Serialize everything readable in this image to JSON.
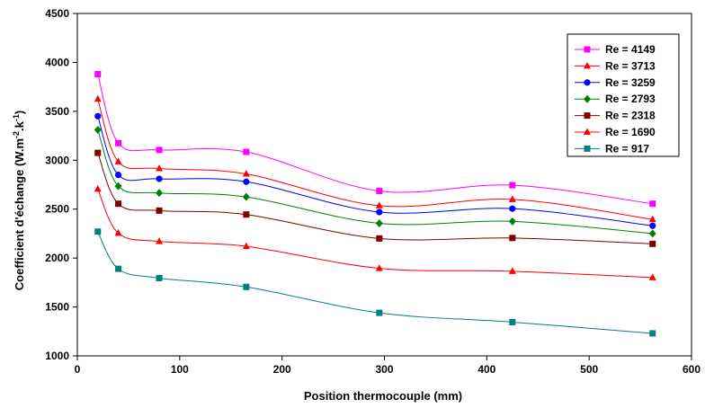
{
  "chart_data": {
    "type": "line",
    "xlabel": "Position thermocouple (mm)",
    "ylabel_main": "Coefficient d'échange (W.m",
    "ylabel_sup1": "-2",
    "ylabel_mid": ".k",
    "ylabel_sup2": "-1",
    "ylabel_end": ")",
    "xlim": [
      0,
      600
    ],
    "ylim": [
      1000,
      4500
    ],
    "xticks": [
      0,
      100,
      200,
      300,
      400,
      500,
      600
    ],
    "yticks": [
      1000,
      1500,
      2000,
      2500,
      3000,
      3500,
      4000,
      4500
    ],
    "grid": false,
    "legend_position": "top-right",
    "x": [
      20,
      40,
      80,
      165,
      295,
      425,
      562
    ],
    "series": [
      {
        "name": "Re = 4149",
        "color": "#ff00ff",
        "marker": "square",
        "values": [
          3880,
          3175,
          3105,
          3085,
          2685,
          2745,
          2555
        ]
      },
      {
        "name": "Re = 3713",
        "color": "#ff0000",
        "marker": "triangle",
        "values": [
          3625,
          2985,
          2915,
          2860,
          2535,
          2600,
          2395
        ]
      },
      {
        "name": "Re = 3259",
        "color": "#0000ff",
        "marker": "circle",
        "values": [
          3450,
          2850,
          2810,
          2780,
          2470,
          2505,
          2330
        ]
      },
      {
        "name": "Re = 2793",
        "color": "#008000",
        "marker": "diamond",
        "values": [
          3310,
          2735,
          2665,
          2625,
          2355,
          2375,
          2250
        ]
      },
      {
        "name": "Re = 2318",
        "color": "#800000",
        "marker": "square",
        "values": [
          3075,
          2555,
          2485,
          2445,
          2200,
          2205,
          2145
        ]
      },
      {
        "name": "Re = 1690",
        "color": "#ff0000",
        "marker": "triangle",
        "values": [
          2705,
          2255,
          2170,
          2120,
          1895,
          1865,
          1800
        ]
      },
      {
        "name": "Re = 917",
        "color": "#008080",
        "marker": "square",
        "values": [
          2270,
          1890,
          1795,
          1705,
          1440,
          1345,
          1230
        ]
      }
    ]
  }
}
